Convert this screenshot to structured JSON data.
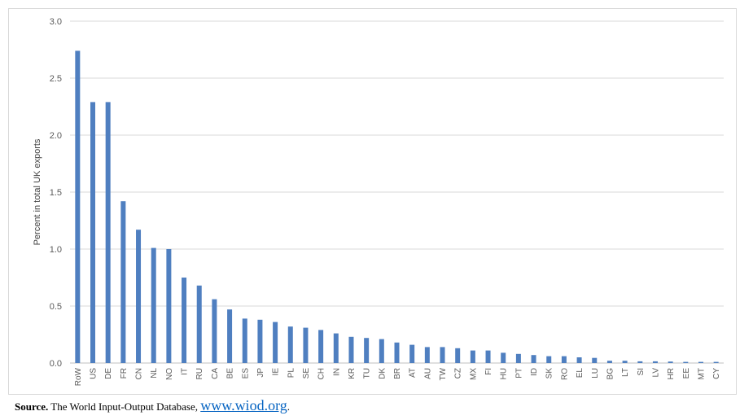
{
  "chart_data": {
    "type": "bar",
    "ylabel": "Percent in total UK exports",
    "xlabel": "",
    "ylim": [
      0,
      3.0
    ],
    "yticks": [
      "0.0",
      "0.5",
      "1.0",
      "1.5",
      "2.0",
      "2.5",
      "3.0"
    ],
    "grid": true,
    "bar_color": "#4f7fc0",
    "categories": [
      "RoW",
      "US",
      "DE",
      "FR",
      "CN",
      "NL",
      "NO",
      "IT",
      "RU",
      "CA",
      "BE",
      "ES",
      "JP",
      "IE",
      "PL",
      "SE",
      "CH",
      "IN",
      "KR",
      "TU",
      "DK",
      "BR",
      "AT",
      "AU",
      "TW",
      "CZ",
      "MX",
      "FI",
      "HU",
      "PT",
      "ID",
      "SK",
      "RO",
      "EL",
      "LU",
      "BG",
      "LT",
      "SI",
      "LV",
      "HR",
      "EE",
      "MT",
      "CY"
    ],
    "values": [
      2.74,
      2.29,
      2.29,
      1.42,
      1.17,
      1.01,
      1.0,
      0.75,
      0.68,
      0.56,
      0.47,
      0.39,
      0.38,
      0.36,
      0.32,
      0.31,
      0.29,
      0.26,
      0.23,
      0.22,
      0.21,
      0.18,
      0.16,
      0.14,
      0.14,
      0.13,
      0.11,
      0.11,
      0.09,
      0.08,
      0.07,
      0.06,
      0.06,
      0.05,
      0.045,
      0.02,
      0.02,
      0.015,
      0.015,
      0.013,
      0.01,
      0.01,
      0.01
    ]
  },
  "source": {
    "label": "Source.",
    "text": " The World Input-Output Database, ",
    "link": "www.wiod.org",
    "end": "."
  }
}
